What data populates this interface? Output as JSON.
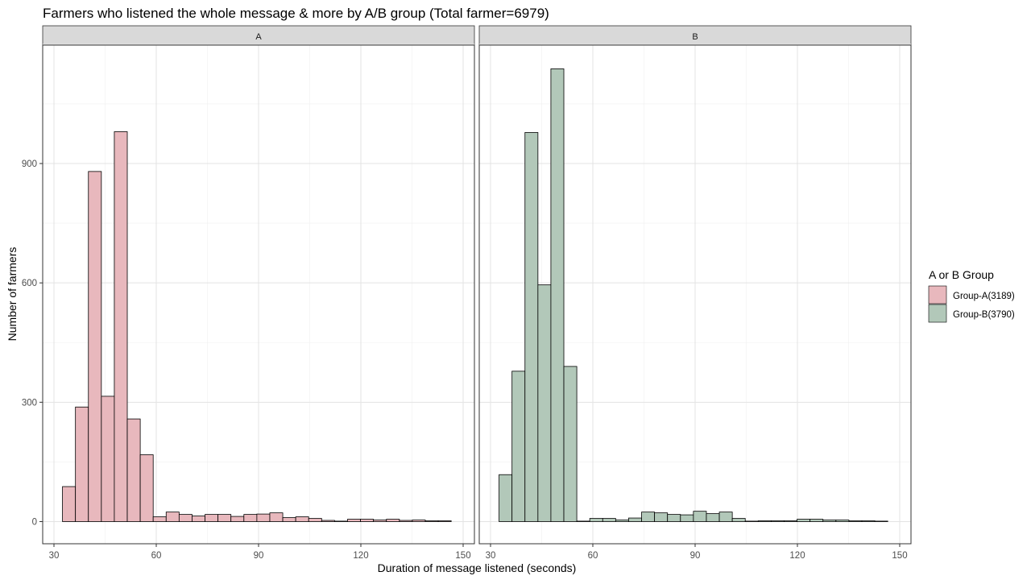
{
  "chart_data": {
    "type": "bar",
    "title": "Farmers who listened the whole message & more by A/B group (Total farmer=6979)",
    "xlabel": "Duration of message listened (seconds)",
    "ylabel": "Number of farmers",
    "xlim": [
      30,
      150
    ],
    "ylim": [
      0,
      1200
    ],
    "x_ticks": [
      30,
      60,
      90,
      120,
      150
    ],
    "y_ticks": [
      0,
      300,
      600,
      900
    ],
    "grid": true,
    "legend": {
      "title": "A or B Group",
      "placement": "right",
      "items": [
        {
          "label": "Group-A(3189)",
          "color": "#e8b8bd"
        },
        {
          "label": "Group-B(3790)",
          "color": "#b2c8b9"
        }
      ]
    },
    "panels": [
      {
        "strip": "A",
        "fill": "#e8b8bd",
        "bin_width": 3.8,
        "bin_starts": [
          32.5,
          36.3,
          40.1,
          43.9,
          47.7,
          51.5,
          55.3,
          59.1,
          62.9,
          66.7,
          70.5,
          74.3,
          78.1,
          81.9,
          85.7,
          89.5,
          93.3,
          97.1,
          100.9,
          104.7,
          108.5,
          112.3,
          116.1,
          119.9,
          123.7,
          127.5,
          131.3,
          135.1,
          138.9,
          142.7
        ],
        "values": [
          88,
          288,
          880,
          315,
          980,
          258,
          168,
          12,
          24,
          18,
          14,
          18,
          18,
          13,
          18,
          19,
          22,
          10,
          12,
          8,
          3,
          0,
          6,
          6,
          4,
          6,
          3,
          4,
          2,
          2
        ]
      },
      {
        "strip": "B",
        "fill": "#b2c8b9",
        "bin_width": 3.8,
        "bin_starts": [
          32.5,
          36.3,
          40.1,
          43.9,
          47.7,
          51.5,
          55.3,
          59.1,
          62.9,
          66.7,
          70.5,
          74.3,
          78.1,
          81.9,
          85.7,
          89.5,
          93.3,
          97.1,
          100.9,
          104.7,
          108.5,
          112.3,
          116.1,
          119.9,
          123.7,
          127.5,
          131.3,
          135.1,
          138.9,
          142.7
        ],
        "values": [
          118,
          378,
          978,
          595,
          1138,
          390,
          0,
          8,
          8,
          4,
          9,
          24,
          22,
          18,
          17,
          26,
          20,
          24,
          8,
          0,
          2,
          2,
          2,
          6,
          6,
          4,
          4,
          2,
          2,
          0
        ]
      }
    ]
  }
}
